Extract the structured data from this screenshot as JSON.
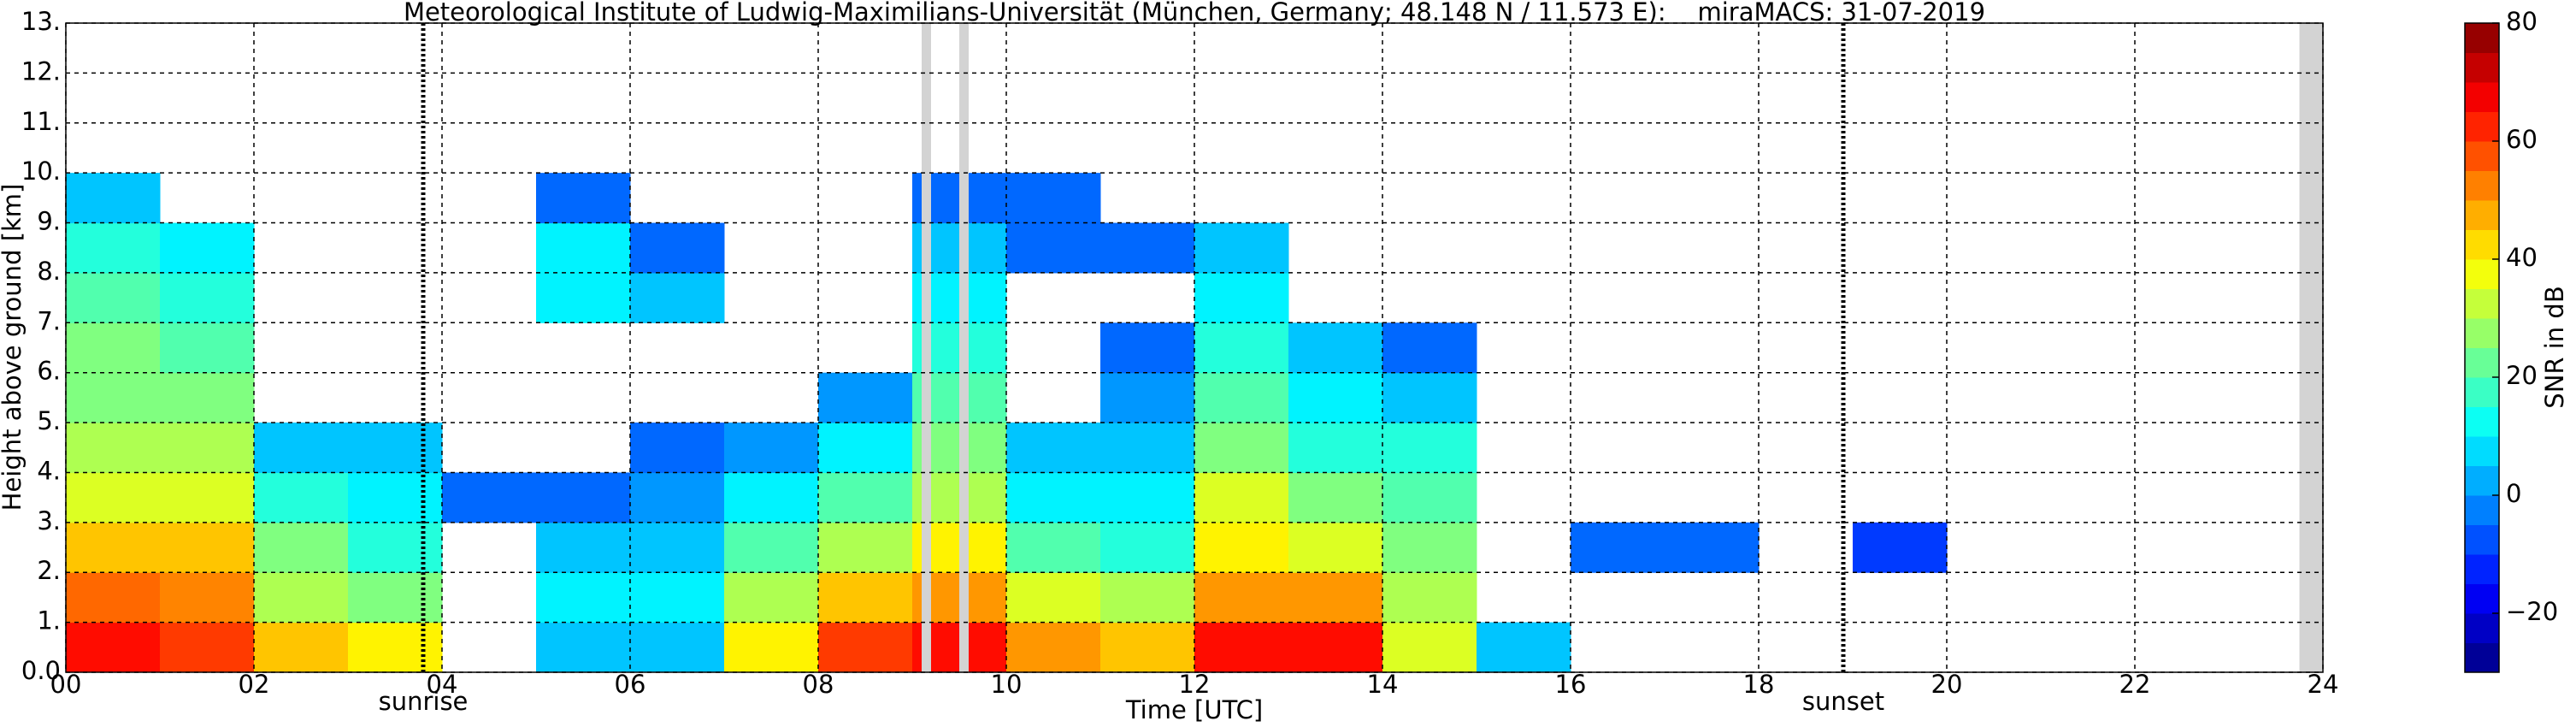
{
  "chart_data": {
    "type": "heatmap",
    "title": "Meteorological Institute of Ludwig-Maximilians-Universität (München, Germany; 48.148 N / 11.573 E):    miraMACS: 31-07-2019",
    "x_label": "Time [UTC]",
    "y_label": "Height above ground [km]",
    "colorbar_label": "SNR in dB",
    "colormap": "jet",
    "grid": true,
    "xlim": [
      0,
      24
    ],
    "ylim": [
      0,
      13
    ],
    "zlim": [
      -30,
      80
    ],
    "xticks": [
      {
        "value": 0,
        "label": "00"
      },
      {
        "value": 2,
        "label": "02"
      },
      {
        "value": 4,
        "label": "04"
      },
      {
        "value": 6,
        "label": "06"
      },
      {
        "value": 8,
        "label": "08"
      },
      {
        "value": 10,
        "label": "10"
      },
      {
        "value": 12,
        "label": "12"
      },
      {
        "value": 14,
        "label": "14"
      },
      {
        "value": 16,
        "label": "16"
      },
      {
        "value": 18,
        "label": "18"
      },
      {
        "value": 20,
        "label": "20"
      },
      {
        "value": 22,
        "label": "22"
      },
      {
        "value": 24,
        "label": "24"
      }
    ],
    "yticks": [
      {
        "value": 0,
        "label": "0.0"
      },
      {
        "value": 1,
        "label": "1."
      },
      {
        "value": 2,
        "label": "2."
      },
      {
        "value": 3,
        "label": "3."
      },
      {
        "value": 4,
        "label": "4."
      },
      {
        "value": 5,
        "label": "5."
      },
      {
        "value": 6,
        "label": "6."
      },
      {
        "value": 7,
        "label": "7."
      },
      {
        "value": 8,
        "label": "8."
      },
      {
        "value": 9,
        "label": "9."
      },
      {
        "value": 10,
        "label": "10."
      },
      {
        "value": 11,
        "label": "11."
      },
      {
        "value": 12,
        "label": "12."
      },
      {
        "value": 13,
        "label": "13."
      }
    ],
    "zticks": [
      {
        "value": -20,
        "label": "−20"
      },
      0,
      20,
      40,
      60,
      80
    ],
    "xbins": [
      0,
      1,
      2,
      3,
      4,
      5,
      6,
      7,
      8,
      9,
      10,
      11,
      12,
      13,
      14,
      15,
      16,
      17,
      18,
      19,
      20,
      21,
      22,
      23,
      24
    ],
    "ybins": [
      0,
      1,
      2,
      3,
      4,
      5,
      6,
      7,
      8,
      9,
      10
    ],
    "z": [
      [
        65,
        60,
        45,
        40,
        null,
        5,
        5,
        40,
        60,
        65,
        50,
        45,
        65,
        65,
        35,
        5,
        null,
        null,
        null,
        null,
        null,
        null,
        null,
        null
      ],
      [
        55,
        52,
        30,
        25,
        null,
        10,
        10,
        30,
        45,
        50,
        35,
        30,
        50,
        50,
        30,
        null,
        null,
        null,
        null,
        null,
        null,
        null,
        null,
        null
      ],
      [
        45,
        45,
        25,
        15,
        null,
        5,
        5,
        20,
        30,
        40,
        20,
        15,
        40,
        35,
        25,
        null,
        -5,
        -5,
        null,
        -10,
        null,
        null,
        null,
        null
      ],
      [
        35,
        35,
        15,
        10,
        -5,
        -5,
        0,
        10,
        20,
        30,
        10,
        10,
        35,
        25,
        20,
        null,
        null,
        null,
        null,
        null,
        null,
        null,
        null,
        null
      ],
      [
        30,
        30,
        5,
        5,
        null,
        null,
        -5,
        0,
        10,
        25,
        5,
        5,
        25,
        15,
        15,
        null,
        null,
        null,
        null,
        null,
        null,
        null,
        null,
        null
      ],
      [
        25,
        25,
        null,
        null,
        null,
        null,
        null,
        null,
        0,
        20,
        null,
        0,
        20,
        10,
        5,
        null,
        null,
        null,
        null,
        null,
        null,
        null,
        null,
        null
      ],
      [
        25,
        20,
        null,
        null,
        null,
        null,
        null,
        null,
        null,
        15,
        null,
        -5,
        15,
        5,
        -5,
        null,
        null,
        null,
        null,
        null,
        null,
        null,
        null,
        null
      ],
      [
        20,
        15,
        null,
        null,
        null,
        10,
        5,
        null,
        null,
        10,
        null,
        null,
        10,
        null,
        null,
        null,
        null,
        null,
        null,
        null,
        null,
        null,
        null,
        null
      ],
      [
        15,
        10,
        null,
        null,
        null,
        10,
        -5,
        null,
        null,
        5,
        -5,
        -5,
        5,
        null,
        null,
        null,
        null,
        null,
        null,
        null,
        null,
        null,
        null,
        null
      ],
      [
        5,
        null,
        null,
        null,
        null,
        -5,
        null,
        null,
        null,
        -5,
        -5,
        null,
        null,
        null,
        null,
        null,
        null,
        null,
        null,
        null,
        null,
        null,
        null,
        null
      ]
    ],
    "gaps": [
      [
        9.1,
        9.2
      ],
      [
        9.5,
        9.6
      ],
      [
        23.75,
        24
      ]
    ],
    "annotations": [
      {
        "text": "sunrise",
        "x": 3.8
      },
      {
        "text": "sunset",
        "x": 18.9
      }
    ]
  }
}
